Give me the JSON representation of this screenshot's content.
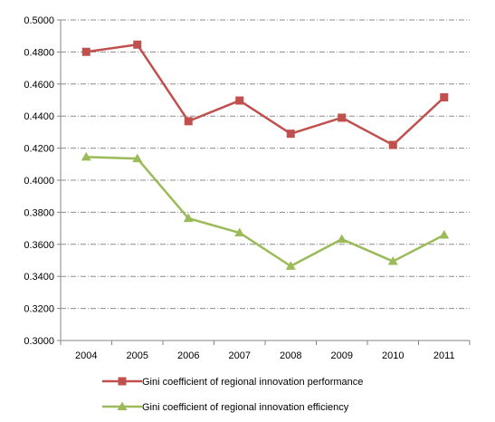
{
  "chart_data": {
    "type": "line",
    "x": [
      "2004",
      "2005",
      "2006",
      "2007",
      "2008",
      "2009",
      "2010",
      "2011"
    ],
    "ylim": [
      0.3,
      0.5
    ],
    "y_ticks": [
      "0.3000",
      "0.3200",
      "0.3400",
      "0.3600",
      "0.3800",
      "0.4000",
      "0.4200",
      "0.4400",
      "0.4600",
      "0.4800",
      "0.5000"
    ],
    "grid": "horizontal dashed",
    "legend_position": "bottom",
    "series": [
      {
        "name": "Gini coefficient of regional innovation performance",
        "color": "#c0504d",
        "marker": "square",
        "values": [
          0.4801,
          0.4846,
          0.4368,
          0.4497,
          0.429,
          0.439,
          0.422,
          0.4517
        ]
      },
      {
        "name": "Gini coefficient of regional innovation efficiency",
        "color": "#9bbb59",
        "marker": "triangle",
        "values": [
          0.4145,
          0.4135,
          0.3762,
          0.3672,
          0.3464,
          0.3632,
          0.3494,
          0.3658
        ]
      }
    ]
  }
}
